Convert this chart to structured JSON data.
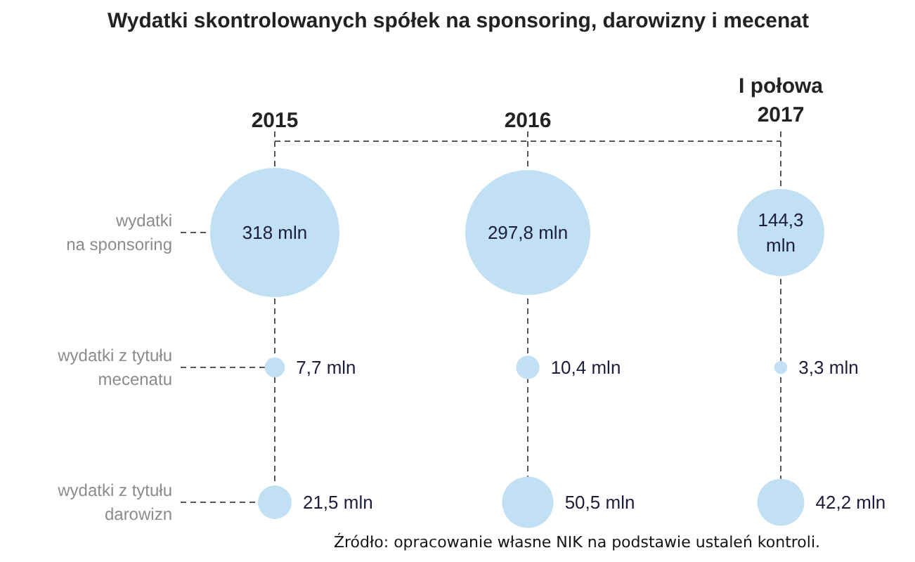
{
  "chart_data": {
    "type": "other",
    "color": "#c2e0f4",
    "title": "Wydatki skontrolowanych spółek na sponsoring, darowizny i mecenat",
    "categories": [
      "2015",
      "2016",
      "I połowa\n2017"
    ],
    "y_categories": [
      "wydatki\nna sponsoring",
      "wydatki z tytułu\nmecenatu",
      "wydatki z tytułu\ndarowizn"
    ],
    "series": [
      {
        "values": [
          318,
          297.8,
          144.3
        ],
        "value_labels": [
          "318 mln",
          "297,8 mln",
          "144,3 mln"
        ]
      },
      {
        "values": [
          7.7,
          10.4,
          3.3
        ],
        "value_labels": [
          "7,7 mln",
          "10,4 mln",
          "3,3 mln"
        ]
      },
      {
        "values": [
          21.5,
          50.5,
          42.2
        ],
        "value_labels": [
          "21,5 mln",
          "50,5 mln",
          "42,2 mln"
        ]
      }
    ],
    "annotations": [
      "Źródło: opracowanie własne NIK na podstawie ustaleń kontroli."
    ]
  }
}
